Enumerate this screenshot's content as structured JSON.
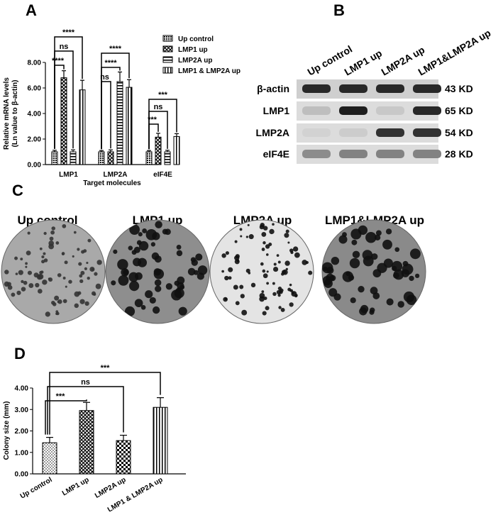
{
  "panels": {
    "a": "A",
    "b": "B",
    "c": "C",
    "d": "D"
  },
  "chart_data": [
    {
      "panel": "A",
      "type": "bar",
      "categories": [
        "LMP1",
        "LMP2A",
        "eIF4E"
      ],
      "series": [
        {
          "name": "Up control",
          "values": [
            1.0,
            1.0,
            1.0
          ],
          "errors": [
            0.12,
            0.1,
            0.1
          ],
          "pattern": "dense"
        },
        {
          "name": "LMP1 up",
          "values": [
            6.8,
            1.0,
            2.15
          ],
          "errors": [
            0.55,
            0.15,
            0.3
          ],
          "pattern": "cross"
        },
        {
          "name": "LMP2A up",
          "values": [
            1.0,
            6.5,
            1.0
          ],
          "errors": [
            0.15,
            0.75,
            0.12
          ],
          "pattern": "hstripe"
        },
        {
          "name": "LMP1 & LMP2A up",
          "values": [
            5.85,
            6.05,
            2.2
          ],
          "errors": [
            0.75,
            0.6,
            0.22
          ],
          "pattern": "vstripe"
        }
      ],
      "xlabel": "Target molecules",
      "ylabel": [
        "Relative mRNA levels",
        "(Ln value to β-actin)"
      ],
      "ylim": [
        0,
        8
      ],
      "yticks": [
        "0.00",
        "2.00",
        "4.00",
        "6.00",
        "8.00"
      ],
      "legend_position": "top-right",
      "significance": [
        {
          "category": 0,
          "from": 0,
          "to": 3,
          "label": "****"
        },
        {
          "category": 0,
          "from": 0,
          "to": 2,
          "label": "ns"
        },
        {
          "category": 0,
          "from": 0,
          "to": 1,
          "label": "****"
        },
        {
          "category": 1,
          "from": 0,
          "to": 3,
          "label": "****"
        },
        {
          "category": 1,
          "from": 0,
          "to": 2,
          "label": "****"
        },
        {
          "category": 1,
          "from": 0,
          "to": 1,
          "label": "ns"
        },
        {
          "category": 2,
          "from": 0,
          "to": 3,
          "label": "***"
        },
        {
          "category": 2,
          "from": 0,
          "to": 2,
          "label": "ns"
        },
        {
          "category": 2,
          "from": 0,
          "to": 1,
          "label": "***"
        }
      ]
    },
    {
      "panel": "D",
      "type": "bar",
      "categories": [
        "Up control",
        "LMP1 up",
        "LMP2A up",
        "LMP1 & LMP2A up"
      ],
      "values": [
        1.45,
        2.95,
        1.55,
        3.1
      ],
      "errors": [
        0.25,
        0.38,
        0.25,
        0.45
      ],
      "patterns": [
        "dots",
        "cross",
        "check",
        "vstripe"
      ],
      "xlabel": "",
      "ylabel": "Colony size (mm)",
      "ylim": [
        0,
        4
      ],
      "yticks": [
        "0.00",
        "1.00",
        "2.00",
        "3.00",
        "4.00"
      ],
      "significance": [
        {
          "from": 0,
          "to": 1,
          "label": "***"
        },
        {
          "from": 0,
          "to": 2,
          "label": "ns"
        },
        {
          "from": 0,
          "to": 3,
          "label": "***"
        }
      ]
    }
  ],
  "western_blot": {
    "lanes": [
      "Up control",
      "LMP1 up",
      "LMP2A up",
      "LMP1&LMP2A up"
    ],
    "rows": [
      {
        "label": "β-actin",
        "size": "43 KD",
        "intensity": [
          0.9,
          0.9,
          0.9,
          0.9
        ]
      },
      {
        "label": "LMP1",
        "size": "65 KD",
        "intensity": [
          0.15,
          0.95,
          0.1,
          0.9
        ]
      },
      {
        "label": "LMP2A",
        "size": "54 KD",
        "intensity": [
          0.05,
          0.08,
          0.85,
          0.85
        ]
      },
      {
        "label": "eIF4E",
        "size": "28 KD",
        "intensity": [
          0.4,
          0.45,
          0.45,
          0.45
        ]
      }
    ]
  },
  "colony_plates": [
    {
      "title": "Up control",
      "background": "#a9a9a9",
      "colony_density": "small-sparse"
    },
    {
      "title": "LMP1 up",
      "background": "#8e8e8e",
      "colony_density": "large-dense"
    },
    {
      "title": "LMP2A up",
      "background": "#e4e4e4",
      "colony_density": "small-sparse"
    },
    {
      "title": "LMP1&LMP2A up",
      "background": "#8a8a8a",
      "colony_density": "large-sparse"
    }
  ]
}
